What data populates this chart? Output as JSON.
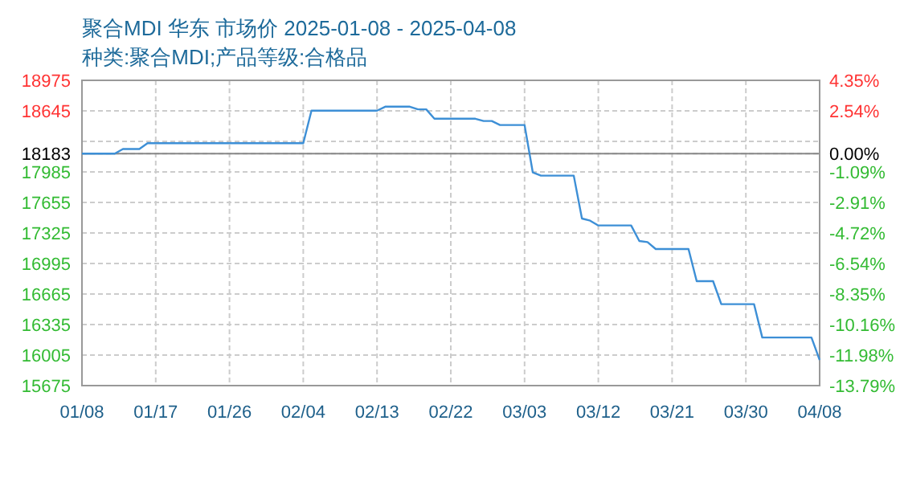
{
  "chart_data": {
    "type": "line",
    "title": "聚合MDI 华东 市场价 2025-01-08 - 2025-04-08",
    "subtitle": "种类:聚合MDI;产品等级:合格品",
    "series": [
      {
        "color": "#3d8fd6",
        "x": [
          "2025-01-08",
          "2025-01-12",
          "2025-01-13",
          "2025-01-15",
          "2025-01-16",
          "2025-02-04",
          "2025-02-05",
          "2025-02-13",
          "2025-02-14",
          "2025-02-17",
          "2025-02-18",
          "2025-02-19",
          "2025-02-20",
          "2025-02-25",
          "2025-02-26",
          "2025-02-27",
          "2025-02-28",
          "2025-03-03",
          "2025-03-04",
          "2025-03-05",
          "2025-03-09",
          "2025-03-10",
          "2025-03-11",
          "2025-03-12",
          "2025-03-16",
          "2025-03-17",
          "2025-03-18",
          "2025-03-19",
          "2025-03-23",
          "2025-03-24",
          "2025-03-26",
          "2025-03-27",
          "2025-03-31",
          "2025-04-01",
          "2025-04-07",
          "2025-04-08"
        ],
        "values": [
          18183,
          18183,
          18233,
          18233,
          18296,
          18296,
          18647,
          18647,
          18690,
          18690,
          18661,
          18661,
          18560,
          18560,
          18535,
          18535,
          18492,
          18492,
          17980,
          17945,
          17945,
          17481,
          17458,
          17406,
          17406,
          17238,
          17226,
          17151,
          17151,
          16804,
          16804,
          16555,
          16555,
          16195,
          16195,
          15952
        ]
      }
    ],
    "xlim": [
      "2025-01-08",
      "2025-04-08"
    ],
    "xticks": [
      {
        "value": "2025-01-08",
        "label": "01/08"
      },
      {
        "value": "2025-01-17",
        "label": "01/17"
      },
      {
        "value": "2025-01-26",
        "label": "01/26"
      },
      {
        "value": "2025-02-04",
        "label": "02/04"
      },
      {
        "value": "2025-02-13",
        "label": "02/13"
      },
      {
        "value": "2025-02-22",
        "label": "02/22"
      },
      {
        "value": "2025-03-03",
        "label": "03/03"
      },
      {
        "value": "2025-03-12",
        "label": "03/12"
      },
      {
        "value": "2025-03-21",
        "label": "03/21"
      },
      {
        "value": "2025-03-30",
        "label": "03/30"
      },
      {
        "value": "2025-04-08",
        "label": "04/08"
      }
    ],
    "ylim": [
      15675,
      18975
    ],
    "yticks": [
      15675,
      16005,
      16335,
      16665,
      16995,
      17325,
      17655,
      17985,
      18183,
      {
        "value": 18315,
        "label": null
      },
      18645,
      18975
    ],
    "y2lim": [
      -13.79,
      4.35
    ],
    "y2ticks": [
      {
        "value": -13.79,
        "label": "-13.79%"
      },
      {
        "value": -11.98,
        "label": "-11.98%"
      },
      {
        "value": -10.16,
        "label": "-10.16%"
      },
      {
        "value": -8.35,
        "label": "-8.35%"
      },
      {
        "value": -6.54,
        "label": "-6.54%"
      },
      {
        "value": -4.72,
        "label": "-4.72%"
      },
      {
        "value": -2.91,
        "label": "-2.91%"
      },
      {
        "value": -1.09,
        "label": "-1.09%"
      },
      {
        "value": 0,
        "label": "0.00%"
      },
      {
        "value": 2.54,
        "label": "2.54%"
      },
      {
        "value": 4.35,
        "label": "4.35%"
      }
    ],
    "ref_lines": [
      {
        "axis": "y",
        "value": 18183,
        "color": "#888888",
        "line_style": "solid"
      }
    ],
    "grid": true,
    "marker": "none",
    "line_style": "solid"
  }
}
